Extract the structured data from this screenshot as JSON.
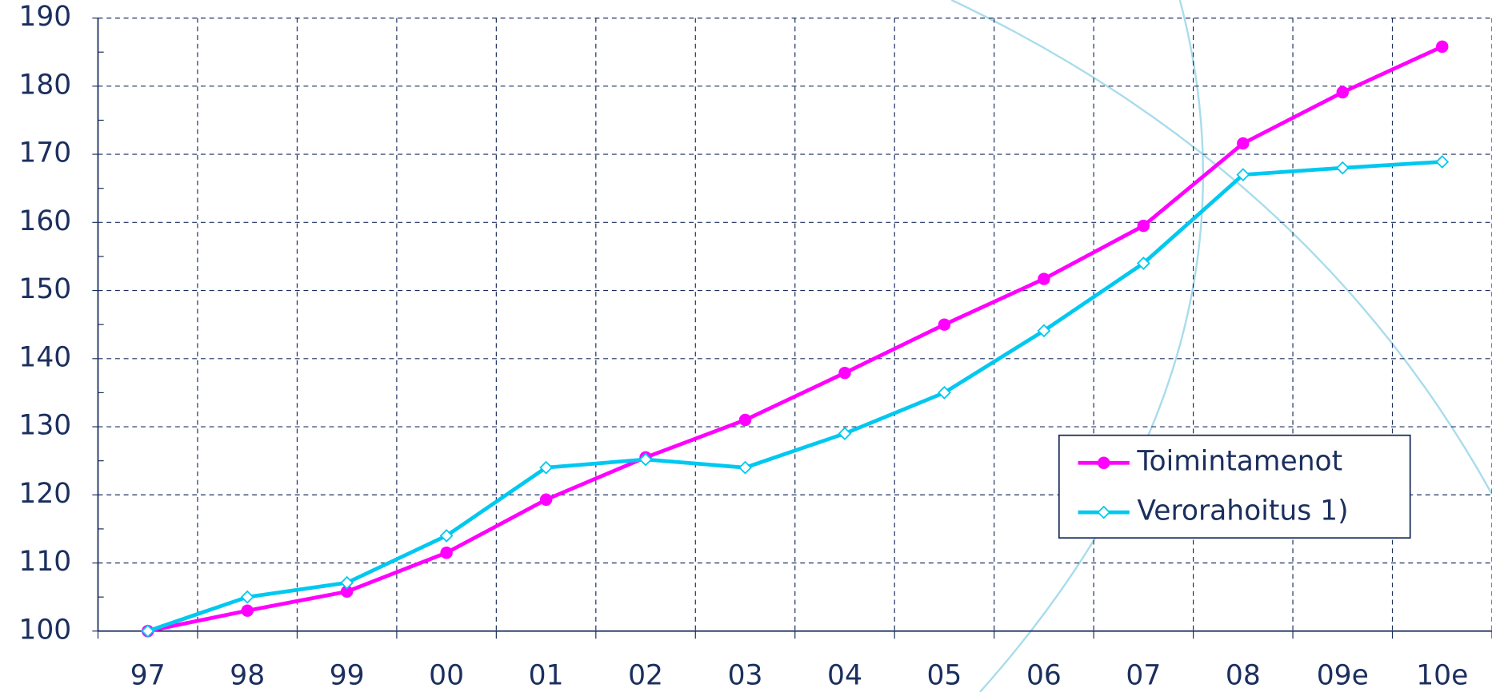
{
  "chart_data": {
    "type": "line",
    "categories": [
      "97",
      "98",
      "99",
      "00",
      "01",
      "02",
      "03",
      "04",
      "05",
      "06",
      "07",
      "08",
      "09e",
      "10e"
    ],
    "series": [
      {
        "name": "Toimintamenot",
        "color": "#ff00ff",
        "marker": "circle",
        "values": [
          100,
          103,
          105.8,
          111.5,
          119.3,
          125.5,
          131,
          137.9,
          145,
          151.7,
          159.5,
          171.6,
          179.1,
          185.8
        ]
      },
      {
        "name": "Verorahoitus 1)",
        "color": "#00c8f0",
        "marker": "diamond",
        "values": [
          100,
          105,
          107.1,
          114,
          124,
          125.2,
          124,
          129,
          135,
          144.1,
          154,
          167,
          168,
          168.9
        ]
      }
    ],
    "ylim": [
      100,
      190
    ],
    "yticks": [
      100,
      110,
      120,
      130,
      140,
      150,
      160,
      170,
      180,
      190
    ],
    "grid": true,
    "legend": "right"
  }
}
